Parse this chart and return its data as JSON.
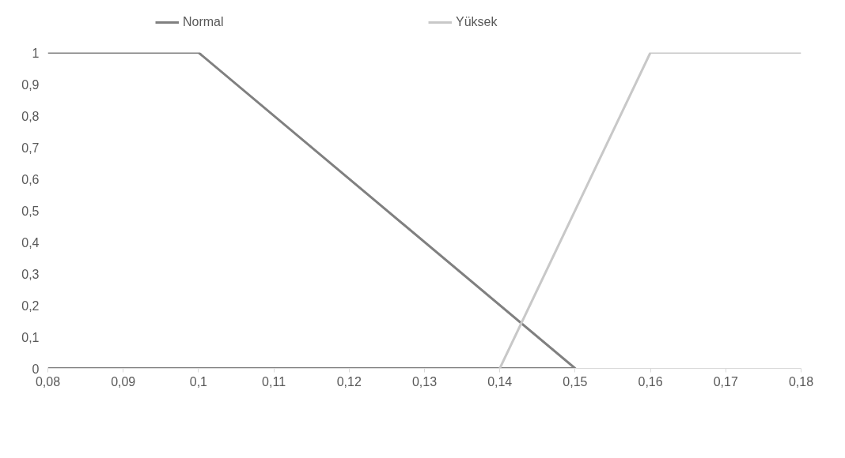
{
  "chart_data": {
    "type": "line",
    "series": [
      {
        "name": "Normal",
        "color": "#808080",
        "x": [
          0.08,
          0.1,
          0.15,
          0.08
        ],
        "values": [
          1,
          1,
          0,
          0
        ]
      },
      {
        "name": "Yüksek",
        "color": "#c8c8c8",
        "x": [
          0.14,
          0.16,
          0.18
        ],
        "values": [
          0,
          1,
          1
        ]
      }
    ],
    "xlim": [
      0.08,
      0.18
    ],
    "xticks": [
      {
        "value": 0.08,
        "label": "0,08"
      },
      {
        "value": 0.09,
        "label": "0,09"
      },
      {
        "value": 0.1,
        "label": "0,1"
      },
      {
        "value": 0.11,
        "label": "0,11"
      },
      {
        "value": 0.12,
        "label": "0,12"
      },
      {
        "value": 0.13,
        "label": "0,13"
      },
      {
        "value": 0.14,
        "label": "0,14"
      },
      {
        "value": 0.15,
        "label": "0,15"
      },
      {
        "value": 0.16,
        "label": "0,16"
      },
      {
        "value": 0.17,
        "label": "0,17"
      },
      {
        "value": 0.18,
        "label": "0,18"
      }
    ],
    "ylim": [
      0,
      1
    ],
    "yticks": [
      0,
      {
        "value": 0.1,
        "label": "0,1"
      },
      {
        "value": 0.2,
        "label": "0,2"
      },
      {
        "value": 0.3,
        "label": "0,3"
      },
      {
        "value": 0.4,
        "label": "0,4"
      },
      {
        "value": 0.5,
        "label": "0,5"
      },
      {
        "value": 0.6,
        "label": "0,6"
      },
      {
        "value": 0.7,
        "label": "0,7"
      },
      {
        "value": 0.8,
        "label": "0,8"
      },
      {
        "value": 0.9,
        "label": "0,9"
      },
      1
    ],
    "grid": false,
    "legend": "top",
    "marker": "none",
    "line_style": "solid"
  }
}
